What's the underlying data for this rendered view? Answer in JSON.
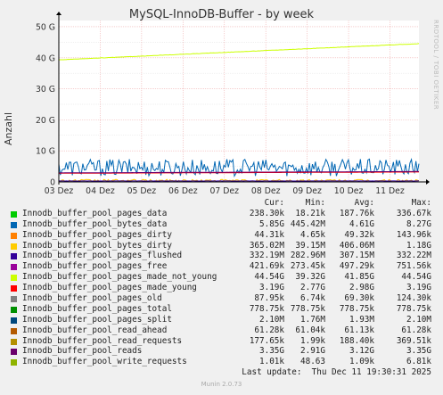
{
  "chart_data": {
    "type": "line",
    "title": "MySQL-InnoDB-Buffer - by week",
    "ylabel": "Anzahl",
    "side_text": "RRDTOOL / TOBI OETIKER",
    "ylim": [
      0,
      52000000000
    ],
    "y_ticks": [
      {
        "value": 0,
        "label": "0"
      },
      {
        "value": 10000000000,
        "label": "10 G"
      },
      {
        "value": 20000000000,
        "label": "20 G"
      },
      {
        "value": 30000000000,
        "label": "30 G"
      },
      {
        "value": 40000000000,
        "label": "40 G"
      },
      {
        "value": 50000000000,
        "label": "50 G"
      }
    ],
    "x_ticks": [
      "03 Dez",
      "04 Dez",
      "05 Dez",
      "06 Dez",
      "07 Dez",
      "08 Dez",
      "09 Dez",
      "10 Dez",
      "11 Dez"
    ],
    "grid": true,
    "series": [
      {
        "name": "Innodb_buffer_pool_pages_data",
        "color": "#00cc00",
        "cur": "238.30k",
        "min": "18.21k",
        "avg": "187.76k",
        "max": "336.67k"
      },
      {
        "name": "Innodb_buffer_pool_bytes_data",
        "color": "#0066b3",
        "cur": "5.85G",
        "min": "445.42M",
        "avg": "4.61G",
        "max": "8.27G"
      },
      {
        "name": "Innodb_buffer_pool_pages_dirty",
        "color": "#ff8000",
        "cur": "44.31k",
        "min": "4.65k",
        "avg": "49.32k",
        "max": "143.96k"
      },
      {
        "name": "Innodb_buffer_pool_bytes_dirty",
        "color": "#ffcc00",
        "cur": "365.02M",
        "min": "39.15M",
        "avg": "406.06M",
        "max": "1.18G"
      },
      {
        "name": "Innodb_buffer_pool_pages_flushed",
        "color": "#330099",
        "cur": "332.19M",
        "min": "282.96M",
        "avg": "307.15M",
        "max": "332.22M"
      },
      {
        "name": "Innodb_buffer_pool_pages_free",
        "color": "#990099",
        "cur": "421.69k",
        "min": "273.45k",
        "avg": "497.29k",
        "max": "751.56k"
      },
      {
        "name": "Innodb_buffer_pool_pages_made_not_young",
        "color": "#ccff00",
        "cur": "44.54G",
        "min": "39.32G",
        "avg": "41.85G",
        "max": "44.54G"
      },
      {
        "name": "Innodb_buffer_pool_pages_made_young",
        "color": "#ff0000",
        "cur": "3.19G",
        "min": "2.77G",
        "avg": "2.98G",
        "max": "3.19G"
      },
      {
        "name": "Innodb_buffer_pool_pages_old",
        "color": "#808080",
        "cur": "87.95k",
        "min": "6.74k",
        "avg": "69.30k",
        "max": "124.30k"
      },
      {
        "name": "Innodb_buffer_pool_pages_total",
        "color": "#008f00",
        "cur": "778.75k",
        "min": "778.75k",
        "avg": "778.75k",
        "max": "778.75k"
      },
      {
        "name": "Innodb_buffer_pool_pages_split",
        "color": "#00487d",
        "cur": "2.10M",
        "min": "1.76M",
        "avg": "1.93M",
        "max": "2.10M"
      },
      {
        "name": "Innodb_buffer_pool_read_ahead",
        "color": "#b35a00",
        "cur": "61.28k",
        "min": "61.04k",
        "avg": "61.13k",
        "max": "61.28k"
      },
      {
        "name": "Innodb_buffer_pool_read_requests",
        "color": "#b38f00",
        "cur": "177.65k",
        "min": "1.99k",
        "avg": "188.40k",
        "max": "369.51k"
      },
      {
        "name": "Innodb_buffer_pool_reads",
        "color": "#6b006b",
        "cur": "3.35G",
        "min": "2.91G",
        "avg": "3.12G",
        "max": "3.35G"
      },
      {
        "name": "Innodb_buffer_pool_write_requests",
        "color": "#8fb300",
        "cur": "1.01k",
        "min": "48.63",
        "avg": "1.09k",
        "max": "6.81k"
      }
    ]
  },
  "legend": {
    "col_cur": "Cur:",
    "col_min": "Min:",
    "col_avg": "Avg:",
    "col_max": "Max:",
    "last_update": "Last update:  Thu Dec 11 19:30:31 2025"
  },
  "footer": "Munin 2.0.73"
}
